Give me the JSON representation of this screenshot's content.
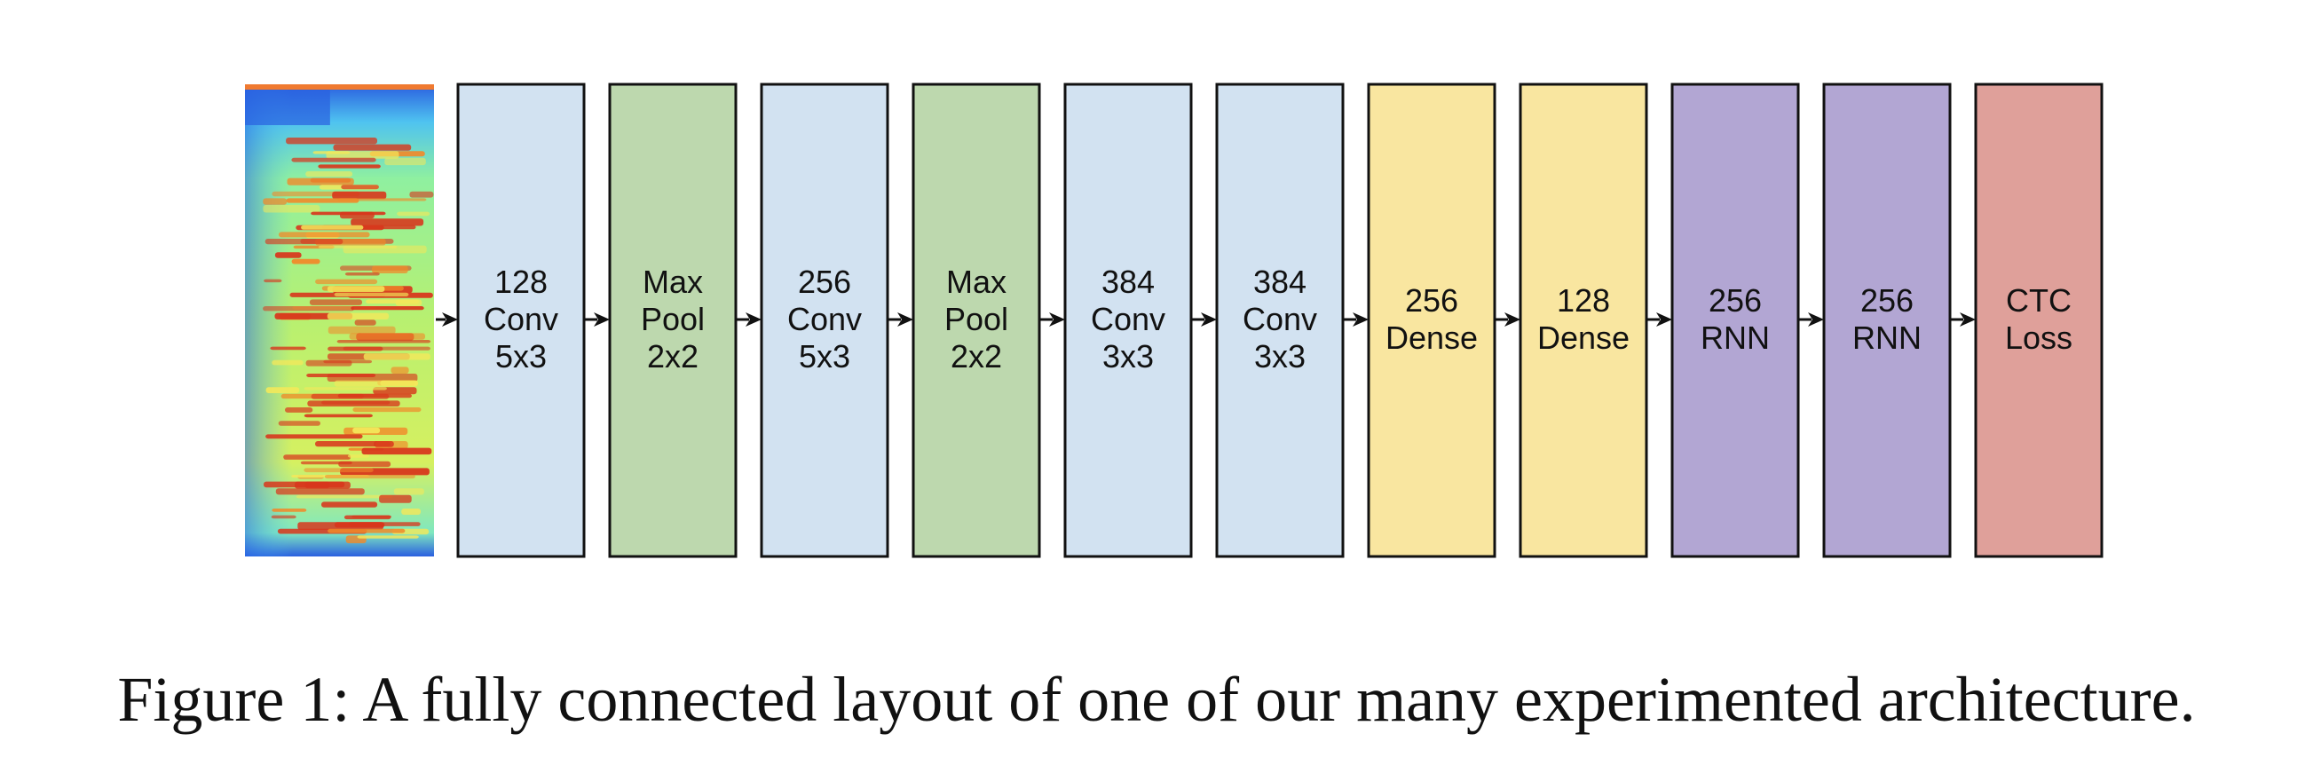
{
  "diagram": {
    "input_image": {
      "icon": "spectrogram-icon",
      "colors": [
        "#1f4fd8",
        "#59d0f0",
        "#8ff07a",
        "#f3e85a",
        "#f08a2a",
        "#d8361c"
      ]
    },
    "blocks": [
      {
        "lines": [
          "128",
          "Conv",
          "5x3"
        ],
        "color": "#d2e2f1"
      },
      {
        "lines": [
          "Max",
          "Pool",
          "2x2"
        ],
        "color": "#bdd8ae"
      },
      {
        "lines": [
          "256",
          "Conv",
          "5x3"
        ],
        "color": "#d2e2f1"
      },
      {
        "lines": [
          "Max",
          "Pool",
          "2x2"
        ],
        "color": "#bdd8ae"
      },
      {
        "lines": [
          "384",
          "Conv",
          "3x3"
        ],
        "color": "#d2e2f1"
      },
      {
        "lines": [
          "384",
          "Conv",
          "3x3"
        ],
        "color": "#d2e2f1"
      },
      {
        "lines": [
          "256",
          "Dense"
        ],
        "color": "#f9e6a0"
      },
      {
        "lines": [
          "128",
          "Dense"
        ],
        "color": "#f9e6a0"
      },
      {
        "lines": [
          "256",
          "RNN"
        ],
        "color": "#b2a6d3"
      },
      {
        "lines": [
          "256",
          "RNN"
        ],
        "color": "#b2a6d3"
      },
      {
        "lines": [
          "CTC",
          "Loss"
        ],
        "color": "#dfa09a"
      }
    ]
  },
  "caption": "Figure 1: A fully connected layout of one of our many experimented architecture."
}
